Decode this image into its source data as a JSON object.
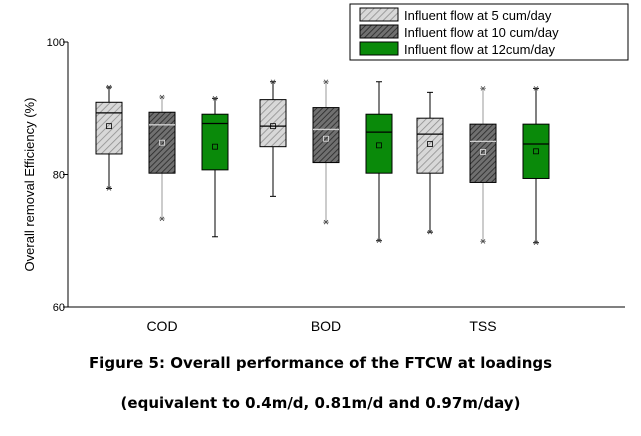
{
  "caption": {
    "line1": "Figure 5: Overall performance of the FTCW at loadings",
    "line2": "(equivalent to 0.4m/d, 0.81m/d and 0.97m/day)"
  },
  "chart_data": {
    "type": "boxplot",
    "ylabel": "Overall removal Efficiency (%)",
    "xlabel": "",
    "ylim": [
      60,
      100
    ],
    "yticks": [
      60,
      80,
      100
    ],
    "categories": [
      "COD",
      "BOD",
      "TSS"
    ],
    "legend_position": "top-right",
    "series": [
      {
        "name": "Influent flow at 5 cum/day",
        "color": "#c8c8c8",
        "pattern": "light-diagonal-hatch",
        "boxes": [
          {
            "category": "COD",
            "whisker_low": 77.9,
            "q1": 83.1,
            "median": 89.3,
            "q3": 90.9,
            "whisker_high": 93.2,
            "mean": 87.3,
            "extremes": [
              93.2,
              77.9
            ]
          },
          {
            "category": "BOD",
            "whisker_low": 76.7,
            "q1": 84.2,
            "median": 87.3,
            "q3": 91.3,
            "whisker_high": 94.0,
            "mean": 87.3,
            "extremes": [
              94.0
            ]
          },
          {
            "category": "TSS",
            "whisker_low": 71.3,
            "q1": 80.2,
            "median": 86.1,
            "q3": 88.5,
            "whisker_high": 92.4,
            "mean": 84.6,
            "extremes": [
              71.3
            ]
          }
        ]
      },
      {
        "name": "Influent flow at 10 cum/day",
        "color": "#555555",
        "pattern": "dark-diagonal-hatch",
        "boxes": [
          {
            "category": "COD",
            "whisker_low": 73.3,
            "q1": 80.2,
            "median": 87.5,
            "q3": 89.4,
            "whisker_high": 91.7,
            "mean": 84.8,
            "extremes": [
              91.7,
              73.3
            ]
          },
          {
            "category": "BOD",
            "whisker_low": 72.8,
            "q1": 81.8,
            "median": 86.8,
            "q3": 90.1,
            "whisker_high": 94.0,
            "mean": 85.4,
            "extremes": [
              94.0,
              72.8
            ]
          },
          {
            "category": "TSS",
            "whisker_low": 69.9,
            "q1": 78.8,
            "median": 85.0,
            "q3": 87.6,
            "whisker_high": 93.0,
            "mean": 83.4,
            "extremes": [
              93.0,
              69.9
            ]
          }
        ]
      },
      {
        "name": "Influent flow at 12cum/day",
        "color": "#0a8a0a",
        "pattern": "solid",
        "boxes": [
          {
            "category": "COD",
            "whisker_low": 70.6,
            "q1": 80.7,
            "median": 87.7,
            "q3": 89.1,
            "whisker_high": 91.5,
            "mean": 84.2,
            "extremes": [
              91.5
            ]
          },
          {
            "category": "BOD",
            "whisker_low": 70.0,
            "q1": 80.2,
            "median": 86.4,
            "q3": 89.1,
            "whisker_high": 94.0,
            "mean": 84.4,
            "extremes": [
              70.0
            ]
          },
          {
            "category": "TSS",
            "whisker_low": 69.7,
            "q1": 79.4,
            "median": 84.6,
            "q3": 87.6,
            "whisker_high": 93.0,
            "mean": 83.5,
            "extremes": [
              93.0,
              69.7
            ]
          }
        ]
      }
    ]
  }
}
